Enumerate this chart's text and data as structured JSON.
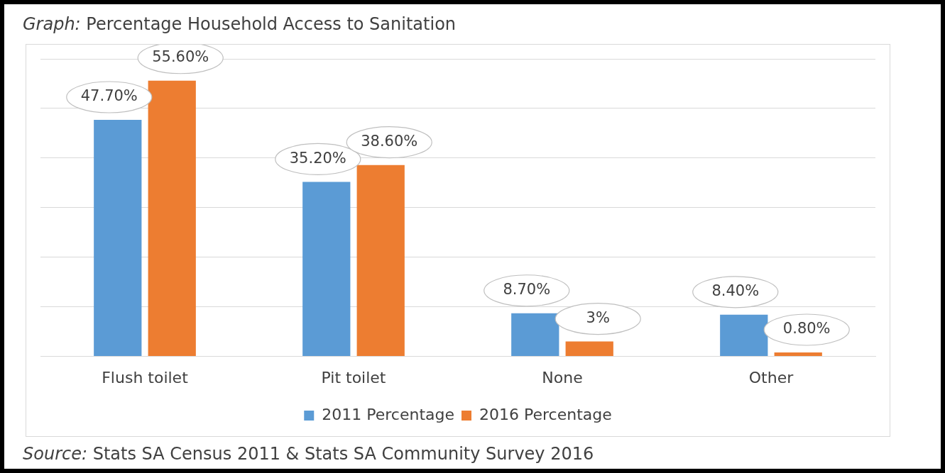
{
  "chart_data": {
    "type": "bar",
    "title": "Graph: Percentage Household Access to Sanitation",
    "categories": [
      "Flush toilet",
      "Pit toilet",
      "None",
      "Other"
    ],
    "series": [
      {
        "name": "2011 Percentage",
        "color": "#5b9bd5",
        "values": [
          47.7,
          35.2,
          8.7,
          8.4
        ],
        "value_labels": [
          "47.70%",
          "35.20%",
          "8.70%",
          "8.40%"
        ]
      },
      {
        "name": "2016 Percentage",
        "color": "#ed7d31",
        "values": [
          55.6,
          38.6,
          3,
          0.8
        ],
        "value_labels": [
          "55.60%",
          "38.60%",
          "3%",
          "0.80%"
        ]
      }
    ],
    "ylim": [
      0,
      60
    ],
    "yticks": [
      {
        "value": 0,
        "label": null
      },
      {
        "value": 10,
        "label": null
      },
      {
        "value": 20,
        "label": null
      },
      {
        "value": 30,
        "label": null
      },
      {
        "value": 40,
        "label": null
      },
      {
        "value": 50,
        "label": null
      },
      {
        "value": 60,
        "label": null
      }
    ],
    "tick_labels": "x",
    "grid": "y",
    "legend": "bottom",
    "annotations": [
      "Source: Stats SA Census 2011 & Stats SA Community Survey 2016"
    ]
  }
}
